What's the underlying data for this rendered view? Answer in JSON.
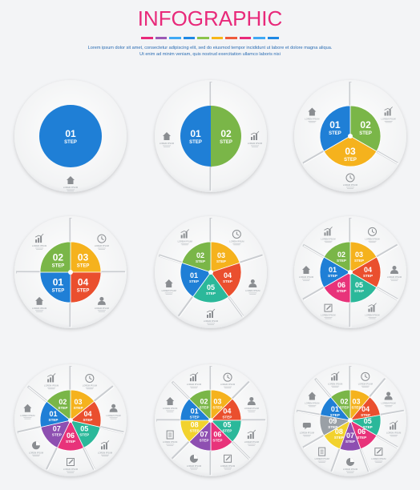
{
  "header": {
    "title": "INFOGRAPHIC",
    "subtitle_line1": "Lorem ipsum dolor sit amet, consectetur adipiscing elit, sed do eiusmod tempor incididunt ut labore et dolore magna aliqua.",
    "subtitle_line2": "Ut enim ad minim veniam, quis nostrud exercitation ullamco laboris nisi",
    "bar_colors": [
      "#e8297a",
      "#9b59b6",
      "#3fa9f5",
      "#1e88e5",
      "#8bc34a",
      "#f7b718",
      "#ef5a3c",
      "#e8297a",
      "#3fa9f5",
      "#1e88e5"
    ]
  },
  "step_word": "STEP",
  "caption_text": "LOREM IPSUM",
  "colors": {
    "01": "#1f7fd6",
    "02": "#7ab648",
    "03": "#f5b21d",
    "04": "#ea4f2e",
    "05": "#2bb89a",
    "06": "#e8337a",
    "07": "#8e4fb1",
    "08": "#f2d22e",
    "09": "#9aa0a6",
    "10": "#e02f5c"
  },
  "diagrams": [
    {
      "name": "one-step",
      "steps": [
        "01"
      ],
      "icons": [
        "home-icon"
      ]
    },
    {
      "name": "two-step",
      "steps": [
        "01",
        "02"
      ],
      "icons": [
        "home-icon",
        "chart-icon"
      ]
    },
    {
      "name": "three-step",
      "steps": [
        "02",
        "03",
        "01"
      ],
      "icons": [
        "chart-icon",
        "clock-icon",
        "home-icon"
      ]
    },
    {
      "name": "four-step",
      "steps": [
        "03",
        "04",
        "01",
        "02"
      ],
      "icons": [
        "clock-icon",
        "user-icon",
        "home-icon",
        "chart-icon"
      ]
    },
    {
      "name": "five-step",
      "steps": [
        "03",
        "04",
        "05",
        "01",
        "02"
      ],
      "icons": [
        "clock-icon",
        "user-icon",
        "chart-icon",
        "home-icon",
        "chart-icon"
      ]
    },
    {
      "name": "six-step",
      "steps": [
        "03",
        "04",
        "05",
        "06",
        "01",
        "02"
      ],
      "icons": [
        "clock-icon",
        "user-icon",
        "chart-icon",
        "edit-icon",
        "home-icon",
        "chart-icon"
      ]
    },
    {
      "name": "seven-step",
      "steps": [
        "03",
        "04",
        "05",
        "06",
        "07",
        "01",
        "02"
      ],
      "icons": [
        "clock-icon",
        "user-icon",
        "chart-icon",
        "edit-icon",
        "pie-icon",
        "home-icon",
        "chart-icon"
      ]
    },
    {
      "name": "eight-step",
      "steps": [
        "03",
        "04",
        "05",
        "06",
        "07",
        "08",
        "01",
        "02"
      ],
      "icons": [
        "clock-icon",
        "user-icon",
        "chart-icon",
        "edit-icon",
        "pie-icon",
        "doc-icon",
        "home-icon",
        "chart-icon"
      ]
    },
    {
      "name": "nine-step",
      "steps": [
        "03",
        "04",
        "05",
        "06",
        "07",
        "08",
        "09",
        "01",
        "02"
      ],
      "icons": [
        "clock-icon",
        "user-icon",
        "chart-icon",
        "edit-icon",
        "pie-icon",
        "doc-icon",
        "chat-icon",
        "home-icon",
        "chart-icon"
      ]
    }
  ]
}
